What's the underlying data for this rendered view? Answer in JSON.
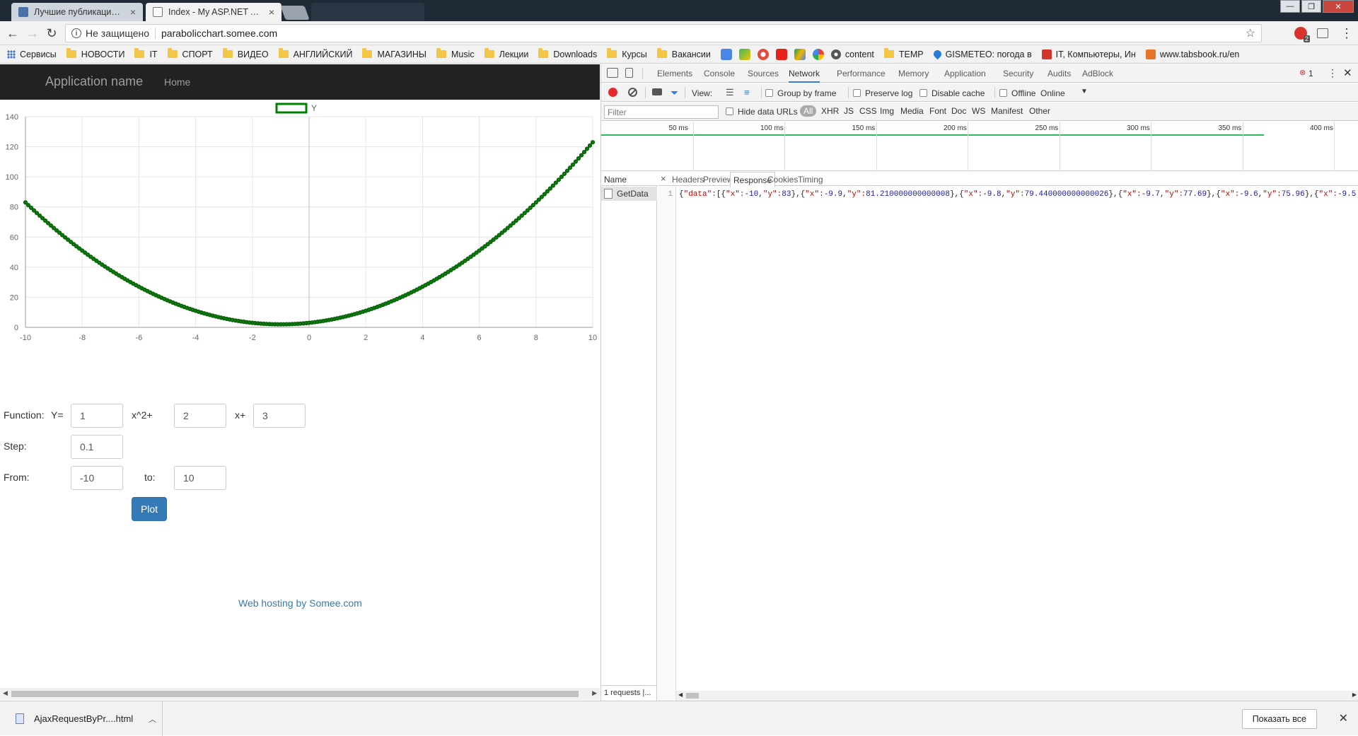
{
  "browser": {
    "tabs": [
      {
        "title": "Лучшие публикации за",
        "active": false,
        "favicon_color": "#4b6fa8"
      },
      {
        "title": "Index - My ASP.NET App",
        "active": true,
        "favicon_color": "#ffffff"
      }
    ],
    "security_label": "Не защищено",
    "url": "parabolicchart.somee.com",
    "badge_count": "2",
    "bookmarks": [
      {
        "label": "Сервисы",
        "icon": "apps-icon"
      },
      {
        "label": "НОВОСТИ",
        "icon": "folder-icon"
      },
      {
        "label": "IT",
        "icon": "folder-icon"
      },
      {
        "label": "СПОРТ",
        "icon": "folder-icon"
      },
      {
        "label": "ВИДЕО",
        "icon": "folder-icon"
      },
      {
        "label": "АНГЛИЙСКИЙ",
        "icon": "folder-icon"
      },
      {
        "label": "МАГАЗИНЫ",
        "icon": "folder-icon"
      },
      {
        "label": "Music",
        "icon": "folder-icon"
      },
      {
        "label": "Лекции",
        "icon": "folder-icon"
      },
      {
        "label": "Downloads",
        "icon": "folder-icon"
      },
      {
        "label": "Курсы",
        "icon": "folder-icon"
      },
      {
        "label": "Вакансии",
        "icon": "folder-icon"
      }
    ],
    "bookmarks_right": [
      {
        "label": "content",
        "icon": "gear-icon"
      },
      {
        "label": "TEMP",
        "icon": "folder-icon"
      },
      {
        "label": "GISMETEO: погода в",
        "icon": "drop-icon"
      },
      {
        "label": "IT, Компьютеры, Ин",
        "icon": "search-icon"
      },
      {
        "label": "www.tabsbook.ru/en",
        "icon": "t-icon"
      }
    ]
  },
  "app": {
    "brand": "Application name",
    "nav_home": "Home",
    "hosting_link": "Web hosting by Somee.com",
    "form": {
      "function_label": "Function:",
      "y_label": "Y=",
      "a": "1",
      "x2_label": "x^2+",
      "b": "2",
      "x_label": "x+",
      "c": "3",
      "step_label": "Step:",
      "step": "0.1",
      "from_label": "From:",
      "from": "-10",
      "to_label": "to:",
      "to": "10",
      "plot_button": "Plot"
    }
  },
  "chart_data": {
    "type": "line",
    "legend": [
      {
        "name": "Y",
        "color": "#008000"
      }
    ],
    "legend_position": "top-center",
    "function": {
      "a": 1,
      "b": 2,
      "c": 3
    },
    "x_range": [
      -10,
      10
    ],
    "step": 0.1,
    "xlim": [
      -10,
      10
    ],
    "ylim": [
      0,
      140
    ],
    "x_ticks": [
      -10,
      -8,
      -6,
      -4,
      -2,
      0,
      2,
      4,
      6,
      8,
      10
    ],
    "y_ticks": [
      0,
      20,
      40,
      60,
      80,
      100,
      120,
      140
    ],
    "grid": true,
    "series_color": "#008000"
  },
  "devtools": {
    "tabs": [
      "Elements",
      "Console",
      "Sources",
      "Network",
      "Performance",
      "Memory",
      "Application",
      "Security",
      "Audits",
      "AdBlock"
    ],
    "active_tab": "Network",
    "error_count": "1",
    "toolbar": {
      "view_label": "View:",
      "group_by_frame": "Group by frame",
      "preserve_log": "Preserve log",
      "disable_cache": "Disable cache",
      "offline": "Offline",
      "throttle": "Online"
    },
    "filter": {
      "placeholder": "Filter",
      "hide_data_urls": "Hide data URLs",
      "types": [
        "All",
        "XHR",
        "JS",
        "CSS",
        "Img",
        "Media",
        "Font",
        "Doc",
        "WS",
        "Manifest",
        "Other"
      ]
    },
    "timeline_labels": [
      "50 ms",
      "100 ms",
      "150 ms",
      "200 ms",
      "250 ms",
      "300 ms",
      "350 ms",
      "400 ms"
    ],
    "name_header": "Name",
    "request_name": "GetData",
    "requests_footer": "1 requests |...",
    "subtabs": [
      "Headers",
      "Preview",
      "Response",
      "Cookies",
      "Timing"
    ],
    "active_subtab": "Response",
    "response_line_number": "1",
    "response_text": "{\"data\":[{\"x\":-10,\"y\":83},{\"x\":-9.9,\"y\":81.210000000000008},{\"x\":-9.8,\"y\":79.440000000000026},{\"x\":-9.7,\"y\":77.69},{\"x\":-9.6,\"y\":75.96},{\"x\":-9.5"
  },
  "downloads": {
    "file": "AjaxRequestByPr....html",
    "show_all": "Показать все"
  }
}
